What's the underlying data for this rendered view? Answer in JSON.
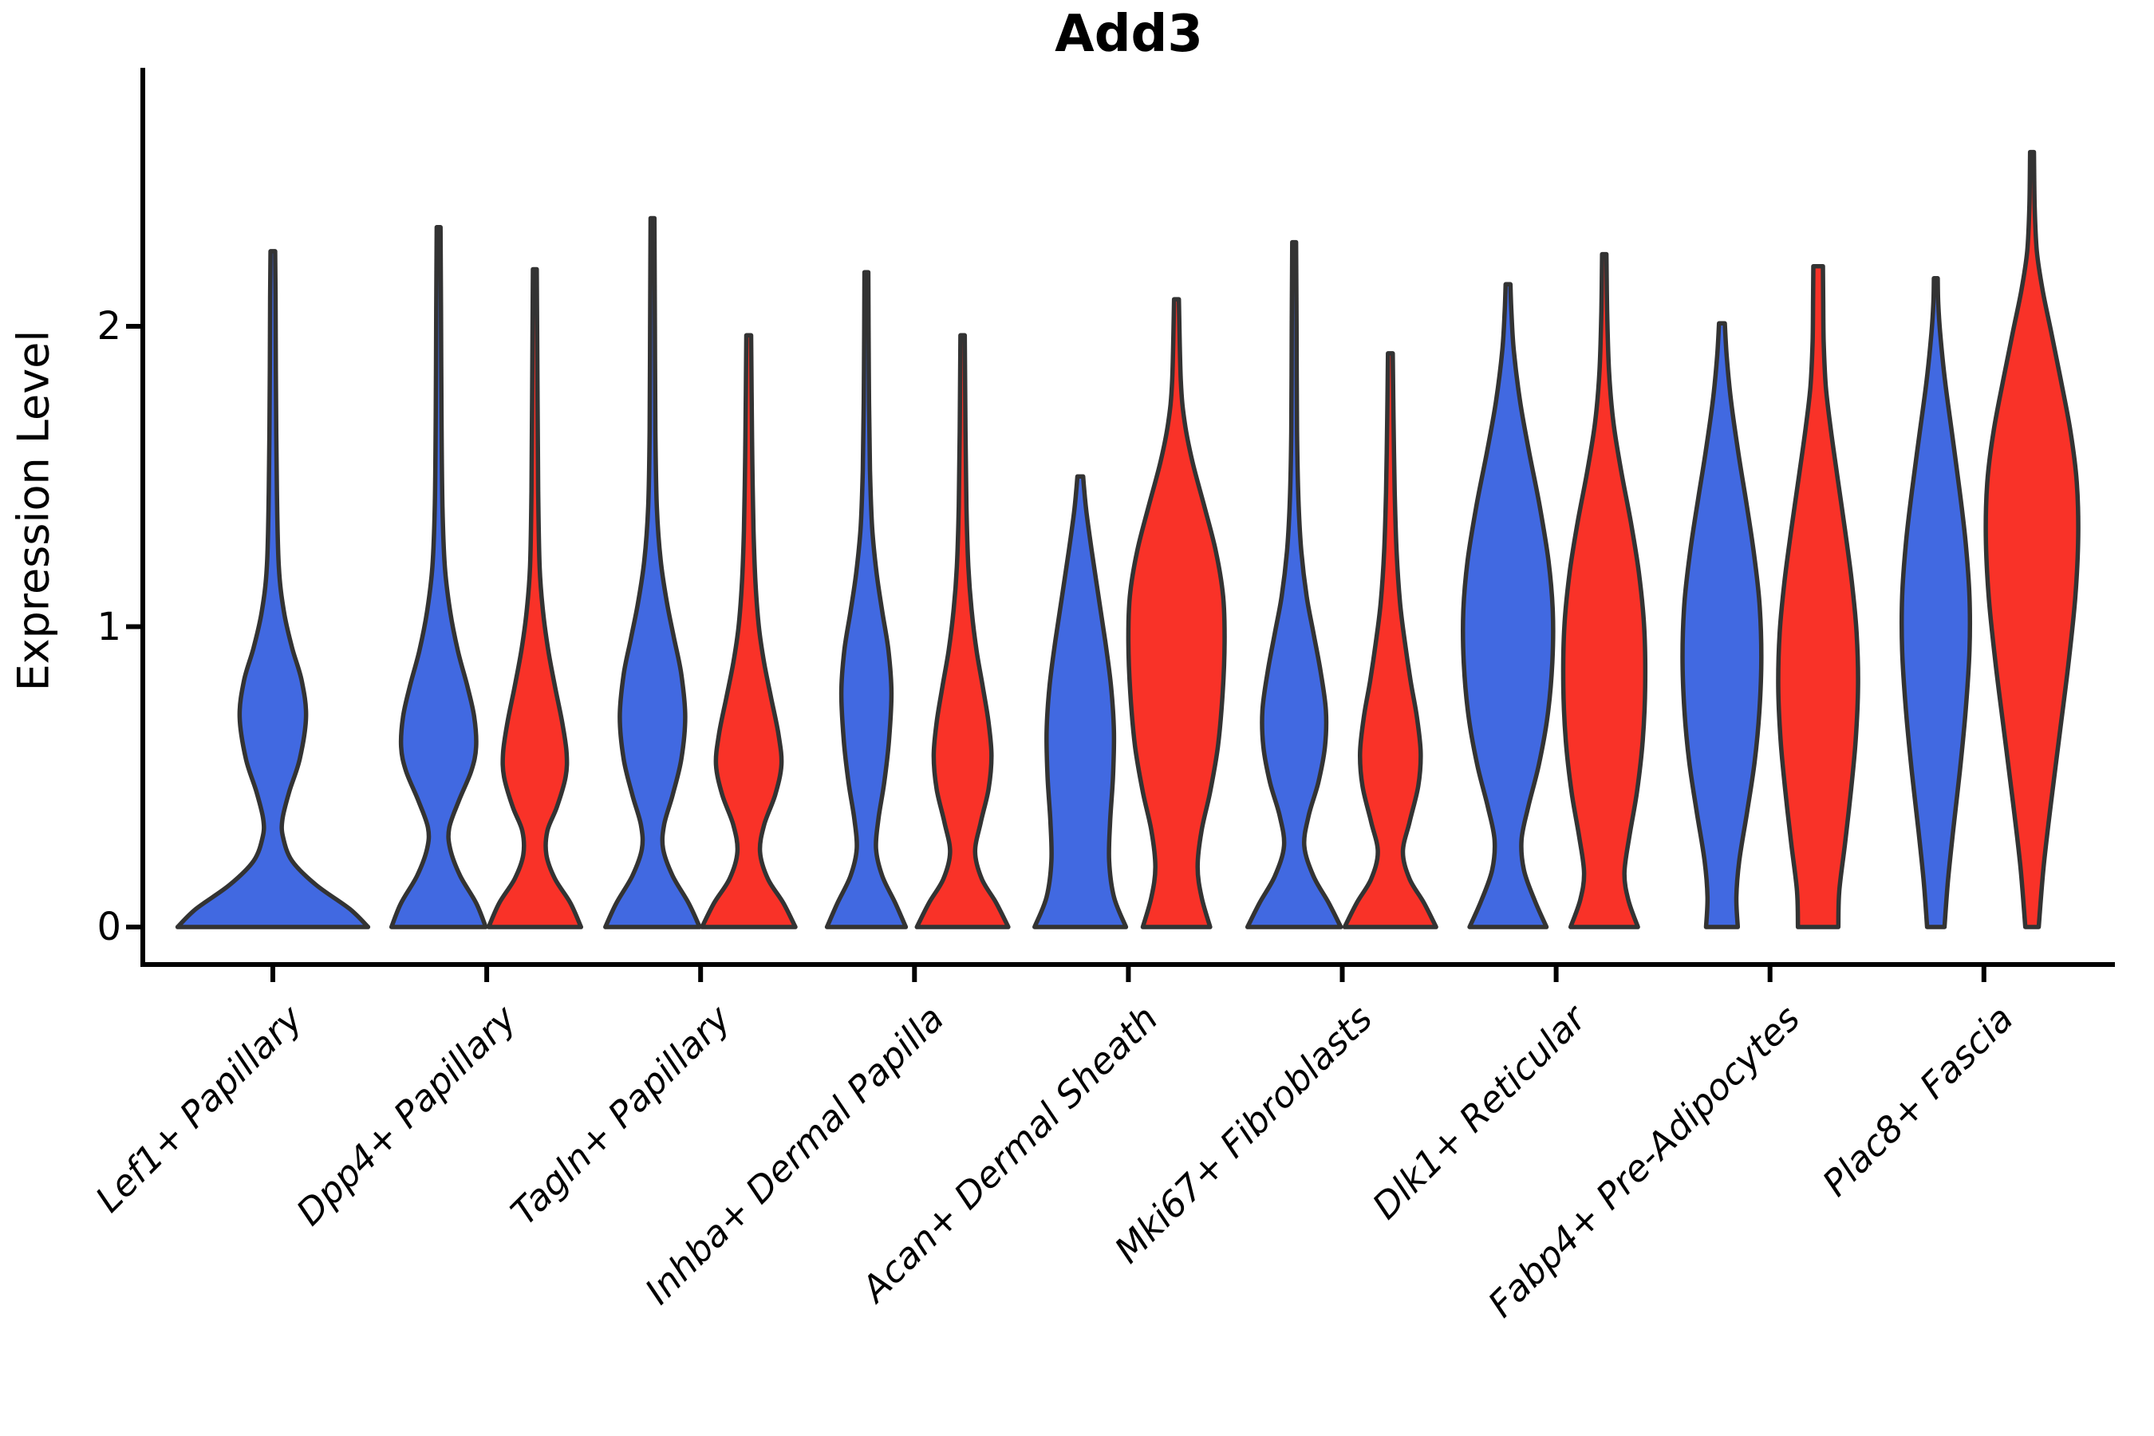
{
  "title": "Add3",
  "axes": {
    "y_label": "Expression Level",
    "y_ticks": [
      "0",
      "1",
      "2"
    ],
    "x_categories": [
      "Lef1+ Papillary",
      "Dpp4+ Papillary",
      "Tagln+ Papillary",
      "Inhba+ Dermal Papilla",
      "Acan+ Dermal Sheath",
      "Mki67+ Fibroblasts",
      "Dlk1+ Reticular",
      "Fabp4+ Pre-Adipocytes",
      "Plac8+ Fascia"
    ]
  },
  "colors": {
    "blue_fill": "#4169E1",
    "red_fill": "#F93228",
    "violin_stroke": "#333333",
    "axis_color": "#000000"
  },
  "chart_data": {
    "type": "violin",
    "title": "Add3",
    "ylabel": "Expression Level",
    "ylim": [
      0,
      2.85
    ],
    "yticks": [
      0,
      1,
      2
    ],
    "grid": false,
    "legend": "none",
    "categories": [
      "Lef1+ Papillary",
      "Dpp4+ Papillary",
      "Tagln+ Papillary",
      "Inhba+ Dermal Papilla",
      "Acan+ Dermal Sheath",
      "Mki67+ Fibroblasts",
      "Dlk1+ Reticular",
      "Fabp4+ Pre-Adipocytes",
      "Plac8+ Fascia"
    ],
    "series": [
      {
        "name": "group-blue",
        "color": "#4169E1"
      },
      {
        "name": "group-red",
        "color": "#F93228"
      }
    ],
    "violins": [
      {
        "category_index": 0,
        "series": 0,
        "span": "full",
        "max_expression": 2.25,
        "profile": [
          [
            0,
            0.99
          ],
          [
            0.06,
            0.8
          ],
          [
            0.14,
            0.45
          ],
          [
            0.22,
            0.2
          ],
          [
            0.3,
            0.105
          ],
          [
            0.36,
            0.1
          ],
          [
            0.45,
            0.17
          ],
          [
            0.56,
            0.28
          ],
          [
            0.7,
            0.345
          ],
          [
            0.82,
            0.3
          ],
          [
            0.93,
            0.2
          ],
          [
            1.05,
            0.115
          ],
          [
            1.2,
            0.062
          ],
          [
            1.45,
            0.042
          ],
          [
            1.8,
            0.032
          ],
          [
            2.1,
            0.028
          ],
          [
            2.25,
            0.024
          ]
        ]
      },
      {
        "category_index": 1,
        "series": 0,
        "span": "left",
        "max_expression": 2.33,
        "profile": [
          [
            0,
            0.98
          ],
          [
            0.08,
            0.78
          ],
          [
            0.17,
            0.45
          ],
          [
            0.26,
            0.24
          ],
          [
            0.33,
            0.22
          ],
          [
            0.42,
            0.42
          ],
          [
            0.52,
            0.68
          ],
          [
            0.6,
            0.78
          ],
          [
            0.7,
            0.74
          ],
          [
            0.8,
            0.6
          ],
          [
            0.92,
            0.4
          ],
          [
            1.05,
            0.24
          ],
          [
            1.2,
            0.13
          ],
          [
            1.4,
            0.08
          ],
          [
            1.7,
            0.06
          ],
          [
            2.05,
            0.05
          ],
          [
            2.33,
            0.04
          ]
        ]
      },
      {
        "category_index": 1,
        "series": 1,
        "span": "right",
        "max_expression": 2.19,
        "profile": [
          [
            0,
            0.96
          ],
          [
            0.08,
            0.74
          ],
          [
            0.16,
            0.42
          ],
          [
            0.24,
            0.24
          ],
          [
            0.32,
            0.26
          ],
          [
            0.4,
            0.46
          ],
          [
            0.5,
            0.64
          ],
          [
            0.58,
            0.66
          ],
          [
            0.68,
            0.57
          ],
          [
            0.8,
            0.42
          ],
          [
            0.92,
            0.28
          ],
          [
            1.05,
            0.17
          ],
          [
            1.2,
            0.1
          ],
          [
            1.45,
            0.07
          ],
          [
            1.8,
            0.055
          ],
          [
            2.19,
            0.04
          ]
        ]
      },
      {
        "category_index": 2,
        "series": 0,
        "span": "left",
        "max_expression": 2.36,
        "profile": [
          [
            0,
            0.98
          ],
          [
            0.08,
            0.75
          ],
          [
            0.17,
            0.42
          ],
          [
            0.26,
            0.22
          ],
          [
            0.34,
            0.24
          ],
          [
            0.44,
            0.42
          ],
          [
            0.56,
            0.6
          ],
          [
            0.7,
            0.68
          ],
          [
            0.84,
            0.6
          ],
          [
            0.96,
            0.45
          ],
          [
            1.08,
            0.3
          ],
          [
            1.22,
            0.17
          ],
          [
            1.4,
            0.09
          ],
          [
            1.65,
            0.06
          ],
          [
            2.0,
            0.05
          ],
          [
            2.36,
            0.04
          ]
        ]
      },
      {
        "category_index": 2,
        "series": 1,
        "span": "right",
        "max_expression": 1.97,
        "profile": [
          [
            0,
            0.97
          ],
          [
            0.08,
            0.72
          ],
          [
            0.16,
            0.4
          ],
          [
            0.25,
            0.235
          ],
          [
            0.34,
            0.32
          ],
          [
            0.44,
            0.55
          ],
          [
            0.54,
            0.68
          ],
          [
            0.64,
            0.62
          ],
          [
            0.76,
            0.47
          ],
          [
            0.88,
            0.32
          ],
          [
            1.0,
            0.21
          ],
          [
            1.15,
            0.14
          ],
          [
            1.32,
            0.1
          ],
          [
            1.55,
            0.075
          ],
          [
            1.78,
            0.06
          ],
          [
            1.97,
            0.05
          ]
        ]
      },
      {
        "category_index": 3,
        "series": 0,
        "span": "left",
        "max_expression": 2.18,
        "profile": [
          [
            0,
            0.82
          ],
          [
            0.08,
            0.6
          ],
          [
            0.17,
            0.33
          ],
          [
            0.26,
            0.2
          ],
          [
            0.36,
            0.25
          ],
          [
            0.48,
            0.37
          ],
          [
            0.62,
            0.47
          ],
          [
            0.78,
            0.52
          ],
          [
            0.92,
            0.46
          ],
          [
            1.05,
            0.33
          ],
          [
            1.18,
            0.21
          ],
          [
            1.33,
            0.12
          ],
          [
            1.52,
            0.075
          ],
          [
            1.75,
            0.055
          ],
          [
            2.0,
            0.045
          ],
          [
            2.18,
            0.04
          ]
        ]
      },
      {
        "category_index": 3,
        "series": 1,
        "span": "right",
        "max_expression": 1.97,
        "profile": [
          [
            0,
            0.95
          ],
          [
            0.08,
            0.7
          ],
          [
            0.16,
            0.4
          ],
          [
            0.25,
            0.26
          ],
          [
            0.35,
            0.38
          ],
          [
            0.46,
            0.54
          ],
          [
            0.57,
            0.6
          ],
          [
            0.68,
            0.54
          ],
          [
            0.8,
            0.42
          ],
          [
            0.92,
            0.29
          ],
          [
            1.05,
            0.19
          ],
          [
            1.2,
            0.12
          ],
          [
            1.4,
            0.08
          ],
          [
            1.65,
            0.06
          ],
          [
            1.97,
            0.045
          ]
        ]
      },
      {
        "category_index": 4,
        "series": 0,
        "span": "left",
        "max_expression": 1.5,
        "profile": [
          [
            0,
            0.95
          ],
          [
            0.1,
            0.7
          ],
          [
            0.22,
            0.6
          ],
          [
            0.35,
            0.62
          ],
          [
            0.5,
            0.68
          ],
          [
            0.65,
            0.7
          ],
          [
            0.8,
            0.64
          ],
          [
            0.95,
            0.52
          ],
          [
            1.1,
            0.38
          ],
          [
            1.25,
            0.24
          ],
          [
            1.38,
            0.13
          ],
          [
            1.46,
            0.08
          ],
          [
            1.5,
            0.06
          ]
        ]
      },
      {
        "category_index": 4,
        "series": 1,
        "span": "right",
        "max_expression": 2.09,
        "profile": [
          [
            0,
            0.7
          ],
          [
            0.1,
            0.52
          ],
          [
            0.2,
            0.44
          ],
          [
            0.32,
            0.52
          ],
          [
            0.45,
            0.7
          ],
          [
            0.6,
            0.86
          ],
          [
            0.78,
            0.96
          ],
          [
            0.95,
            1.0
          ],
          [
            1.1,
            0.97
          ],
          [
            1.25,
            0.82
          ],
          [
            1.4,
            0.58
          ],
          [
            1.55,
            0.33
          ],
          [
            1.68,
            0.17
          ],
          [
            1.82,
            0.09
          ],
          [
            2.09,
            0.05
          ]
        ]
      },
      {
        "category_index": 5,
        "series": 0,
        "span": "left",
        "max_expression": 2.28,
        "profile": [
          [
            0,
            0.97
          ],
          [
            0.08,
            0.72
          ],
          [
            0.17,
            0.4
          ],
          [
            0.27,
            0.21
          ],
          [
            0.37,
            0.3
          ],
          [
            0.48,
            0.5
          ],
          [
            0.6,
            0.64
          ],
          [
            0.72,
            0.66
          ],
          [
            0.85,
            0.55
          ],
          [
            0.98,
            0.4
          ],
          [
            1.1,
            0.26
          ],
          [
            1.25,
            0.15
          ],
          [
            1.42,
            0.09
          ],
          [
            1.65,
            0.06
          ],
          [
            2.0,
            0.05
          ],
          [
            2.28,
            0.04
          ]
        ]
      },
      {
        "category_index": 5,
        "series": 1,
        "span": "right",
        "max_expression": 1.91,
        "profile": [
          [
            0,
            0.95
          ],
          [
            0.08,
            0.7
          ],
          [
            0.16,
            0.4
          ],
          [
            0.25,
            0.26
          ],
          [
            0.35,
            0.4
          ],
          [
            0.47,
            0.58
          ],
          [
            0.58,
            0.63
          ],
          [
            0.7,
            0.55
          ],
          [
            0.82,
            0.42
          ],
          [
            0.95,
            0.3
          ],
          [
            1.08,
            0.2
          ],
          [
            1.25,
            0.13
          ],
          [
            1.45,
            0.09
          ],
          [
            1.7,
            0.065
          ],
          [
            1.91,
            0.05
          ]
        ]
      },
      {
        "category_index": 6,
        "series": 0,
        "span": "left",
        "max_expression": 2.14,
        "profile": [
          [
            0,
            0.8
          ],
          [
            0.09,
            0.55
          ],
          [
            0.19,
            0.33
          ],
          [
            0.29,
            0.28
          ],
          [
            0.4,
            0.42
          ],
          [
            0.54,
            0.64
          ],
          [
            0.7,
            0.82
          ],
          [
            0.88,
            0.92
          ],
          [
            1.05,
            0.93
          ],
          [
            1.22,
            0.84
          ],
          [
            1.4,
            0.66
          ],
          [
            1.58,
            0.44
          ],
          [
            1.75,
            0.25
          ],
          [
            1.92,
            0.12
          ],
          [
            2.05,
            0.07
          ],
          [
            2.14,
            0.05
          ]
        ]
      },
      {
        "category_index": 6,
        "series": 1,
        "span": "right",
        "max_expression": 2.24,
        "profile": [
          [
            0,
            0.7
          ],
          [
            0.09,
            0.5
          ],
          [
            0.18,
            0.42
          ],
          [
            0.3,
            0.52
          ],
          [
            0.45,
            0.68
          ],
          [
            0.62,
            0.8
          ],
          [
            0.8,
            0.85
          ],
          [
            1.0,
            0.83
          ],
          [
            1.18,
            0.72
          ],
          [
            1.35,
            0.55
          ],
          [
            1.52,
            0.35
          ],
          [
            1.68,
            0.19
          ],
          [
            1.85,
            0.1
          ],
          [
            2.05,
            0.06
          ],
          [
            2.24,
            0.045
          ]
        ]
      },
      {
        "category_index": 7,
        "series": 0,
        "span": "left",
        "max_expression": 2.01,
        "profile": [
          [
            0,
            0.33
          ],
          [
            0.1,
            0.3
          ],
          [
            0.22,
            0.36
          ],
          [
            0.38,
            0.52
          ],
          [
            0.55,
            0.68
          ],
          [
            0.72,
            0.78
          ],
          [
            0.9,
            0.82
          ],
          [
            1.08,
            0.78
          ],
          [
            1.25,
            0.66
          ],
          [
            1.42,
            0.5
          ],
          [
            1.58,
            0.34
          ],
          [
            1.75,
            0.19
          ],
          [
            1.9,
            0.1
          ],
          [
            2.01,
            0.06
          ]
        ]
      },
      {
        "category_index": 7,
        "series": 1,
        "span": "right",
        "max_expression": 2.2,
        "profile": [
          [
            0,
            0.42
          ],
          [
            0.12,
            0.44
          ],
          [
            0.28,
            0.56
          ],
          [
            0.45,
            0.68
          ],
          [
            0.62,
            0.78
          ],
          [
            0.8,
            0.83
          ],
          [
            0.98,
            0.8
          ],
          [
            1.15,
            0.7
          ],
          [
            1.32,
            0.56
          ],
          [
            1.5,
            0.4
          ],
          [
            1.66,
            0.26
          ],
          [
            1.8,
            0.16
          ],
          [
            1.95,
            0.115
          ],
          [
            2.1,
            0.105
          ],
          [
            2.2,
            0.1
          ]
        ]
      },
      {
        "category_index": 8,
        "series": 0,
        "span": "left",
        "max_expression": 2.16,
        "profile": [
          [
            0,
            0.18
          ],
          [
            0.15,
            0.25
          ],
          [
            0.32,
            0.36
          ],
          [
            0.52,
            0.5
          ],
          [
            0.72,
            0.62
          ],
          [
            0.92,
            0.7
          ],
          [
            1.1,
            0.7
          ],
          [
            1.28,
            0.62
          ],
          [
            1.46,
            0.49
          ],
          [
            1.64,
            0.34
          ],
          [
            1.82,
            0.19
          ],
          [
            1.98,
            0.09
          ],
          [
            2.08,
            0.05
          ],
          [
            2.16,
            0.04
          ]
        ]
      },
      {
        "category_index": 8,
        "series": 1,
        "span": "right",
        "max_expression": 2.58,
        "profile": [
          [
            0,
            0.14
          ],
          [
            0.2,
            0.24
          ],
          [
            0.42,
            0.4
          ],
          [
            0.65,
            0.58
          ],
          [
            0.88,
            0.76
          ],
          [
            1.1,
            0.9
          ],
          [
            1.3,
            0.96
          ],
          [
            1.48,
            0.93
          ],
          [
            1.65,
            0.8
          ],
          [
            1.82,
            0.6
          ],
          [
            1.98,
            0.4
          ],
          [
            2.12,
            0.22
          ],
          [
            2.25,
            0.1
          ],
          [
            2.4,
            0.055
          ],
          [
            2.58,
            0.04
          ]
        ]
      }
    ]
  }
}
